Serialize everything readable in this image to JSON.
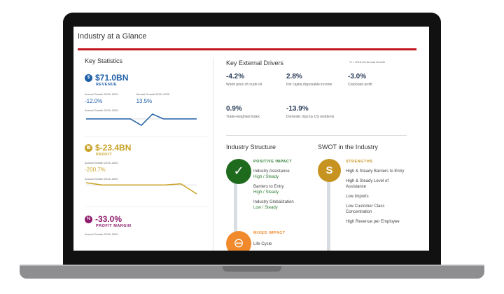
{
  "title": "Industry at a Glance",
  "key_statistics": {
    "heading": "Key Statistics",
    "revenue": {
      "icon": "$",
      "value": "$71.0BN",
      "label": "REVENUE",
      "growth1_label": "Annual Growth 2015–2020",
      "growth1": "-12.0%",
      "growth2_label": "Annual Growth 2020–2025",
      "growth2": "13.5%",
      "chart_label": "Annual Growth 2015–2025",
      "series": [
        0,
        0,
        0,
        0,
        0,
        -4,
        3,
        0,
        0,
        0,
        0
      ],
      "color": "#1f5fa8"
    },
    "profit": {
      "value": "$-23.4BN",
      "label": "PROFIT",
      "growth_label": "Annual Growth 2015–2020",
      "growth": "-200.7%",
      "chart_label": "Annual Growth 2015–2020",
      "series": [
        1,
        0,
        0,
        0,
        0,
        0,
        0.5,
        -4
      ],
      "color": "#c9a227"
    },
    "margin": {
      "value": "-33.0%",
      "label": "PROFIT MARGIN",
      "growth_label": "Annual Growth 2015–2020",
      "color": "#8e1c6c"
    }
  },
  "drivers": {
    "heading": "Key External Drivers",
    "note": "% = 2015–20 Annual Growth",
    "items": [
      {
        "value": "-4.2%",
        "label": "World price of crude oil"
      },
      {
        "value": "2.8%",
        "label": "Per capita disposable income"
      },
      {
        "value": "-3.0%",
        "label": "Corporate profit"
      },
      {
        "value": "0.9%",
        "label": "Trade-weighted index"
      },
      {
        "value": "-13.9%",
        "label": "Domestic trips by US residents"
      }
    ]
  },
  "structure": {
    "heading": "Industry Structure",
    "positive_label": "POSITIVE IMPACT",
    "positive": [
      {
        "name": "Industry Assistance",
        "level": "High / Steady"
      },
      {
        "name": "Barriers to Entry",
        "level": "High / Steady"
      },
      {
        "name": "Industry Globalization",
        "level": "Low / Steady"
      }
    ],
    "mixed_label": "MIXED IMPACT",
    "mixed": [
      {
        "name": "Life Cycle"
      }
    ]
  },
  "swot": {
    "heading": "SWOT in the Industry",
    "letter": "S",
    "strengths_label": "STRENGTHS",
    "strengths": [
      "High & Steady Barriers to Entry",
      "High & Steady Level of Assistance",
      "Low Imports",
      "Low Customer Class Concentration",
      "High Revenue per Employee"
    ]
  }
}
